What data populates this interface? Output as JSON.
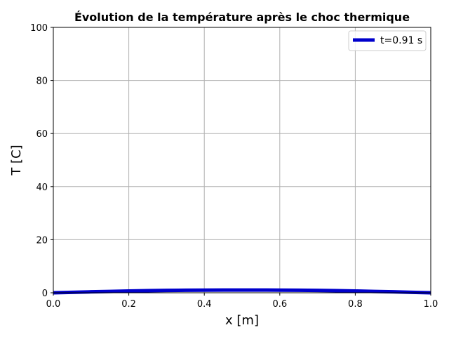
{
  "chart_data": {
    "type": "line",
    "title": "Évolution de la température après le choc thermique",
    "xlabel": "x [m]",
    "ylabel": "T [C]",
    "xlim": [
      0.0,
      1.0
    ],
    "ylim": [
      0,
      100
    ],
    "xticks": [
      "0.0",
      "0.2",
      "0.4",
      "0.6",
      "0.8",
      "1.0"
    ],
    "yticks": [
      "0",
      "20",
      "40",
      "60",
      "80",
      "100"
    ],
    "grid": true,
    "legend_position": "top-right",
    "series": [
      {
        "name": "t=0.91 s",
        "color": "#0000cc",
        "x": [
          0.0,
          0.05,
          0.1,
          0.15,
          0.2,
          0.25,
          0.3,
          0.35,
          0.4,
          0.45,
          0.5,
          0.55,
          0.6,
          0.65,
          0.7,
          0.75,
          0.8,
          0.85,
          0.9,
          0.95,
          1.0
        ],
        "y": [
          0.0,
          0.18,
          0.35,
          0.51,
          0.66,
          0.79,
          0.89,
          0.96,
          1.0,
          1.02,
          1.03,
          1.02,
          1.0,
          0.96,
          0.89,
          0.79,
          0.66,
          0.51,
          0.35,
          0.18,
          0.0
        ]
      }
    ]
  }
}
